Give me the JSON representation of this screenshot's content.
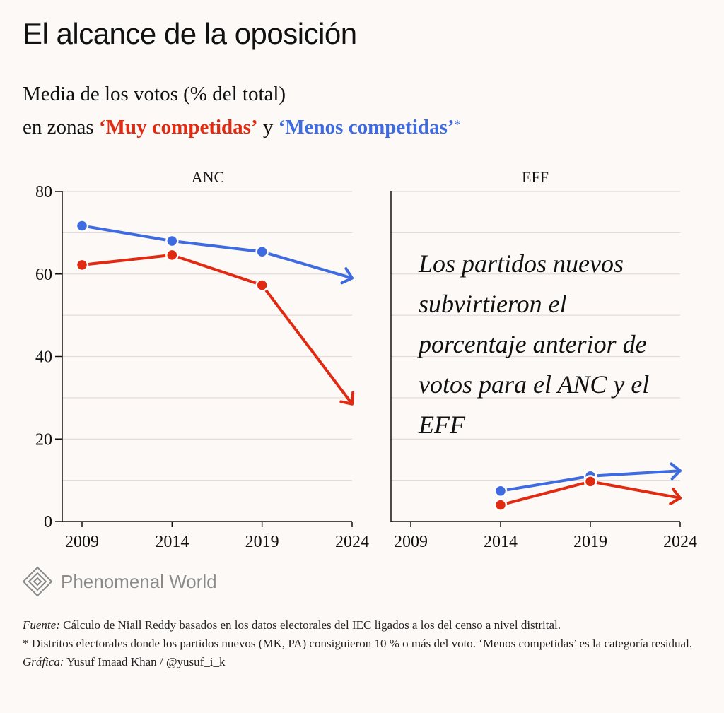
{
  "header": {
    "title": "El alcance de la oposición",
    "subtitle_line1": "Media de los votos (% del total)",
    "subtitle_prefix": "en zonas ",
    "series_red_label": "‘Muy competidas’",
    "subtitle_and": " y ",
    "series_blue_label": "‘Menos competidas’",
    "asterisk": "*"
  },
  "colors": {
    "red": "#e02a12",
    "blue": "#3f6be0",
    "background": "#fdf9f7",
    "gridline": "#e3dbd8",
    "axis": "#111111"
  },
  "chart_data": [
    {
      "type": "line",
      "panel": "ANC",
      "x": [
        2009,
        2014,
        2019,
        2024
      ],
      "ylim": [
        0,
        80
      ],
      "yticks": [
        0,
        20,
        40,
        60,
        80
      ],
      "xticks": [
        2009,
        2014,
        2019,
        2024
      ],
      "series": [
        {
          "name": "‘Menos competidas’",
          "color": "blue",
          "values": [
            71.7,
            68.0,
            65.4,
            59.0
          ]
        },
        {
          "name": "‘Muy competidas’",
          "color": "red",
          "values": [
            62.2,
            64.6,
            57.3,
            28.5
          ]
        }
      ],
      "last_point_marker": "arrow"
    },
    {
      "type": "line",
      "panel": "EFF",
      "x": [
        2014,
        2019,
        2024
      ],
      "ylim": [
        0,
        80
      ],
      "yticks": [
        0,
        20,
        40,
        60,
        80
      ],
      "xticks": [
        2009,
        2014,
        2019,
        2024
      ],
      "series": [
        {
          "name": "‘Menos competidas’",
          "color": "blue",
          "values": [
            7.4,
            11.0,
            12.3
          ]
        },
        {
          "name": "‘Muy competidas’",
          "color": "red",
          "values": [
            4.0,
            9.7,
            5.7
          ]
        }
      ],
      "last_point_marker": "arrow",
      "annotation": "Los partidos nuevos subvirtieron el porcentaje anterior de votos para el ANC y el EFF"
    }
  ],
  "brand": {
    "name": "Phenomenal World",
    "icon": "diamond-logo-icon"
  },
  "footer": {
    "source_label": "Fuente:",
    "source_text": " Cálculo de Niall Reddy basados en los datos electorales del IEC ligados a los del censo a nivel distrital.",
    "footnote": "* Distritos electorales donde los partidos nuevos (MK, PA) consiguieron 10 % o más del voto. ‘Menos competidas’ es la categoría residual.",
    "credit_label": "Gráfica:",
    "credit_text": " Yusuf Imaad Khan / @yusuf_i_k"
  }
}
